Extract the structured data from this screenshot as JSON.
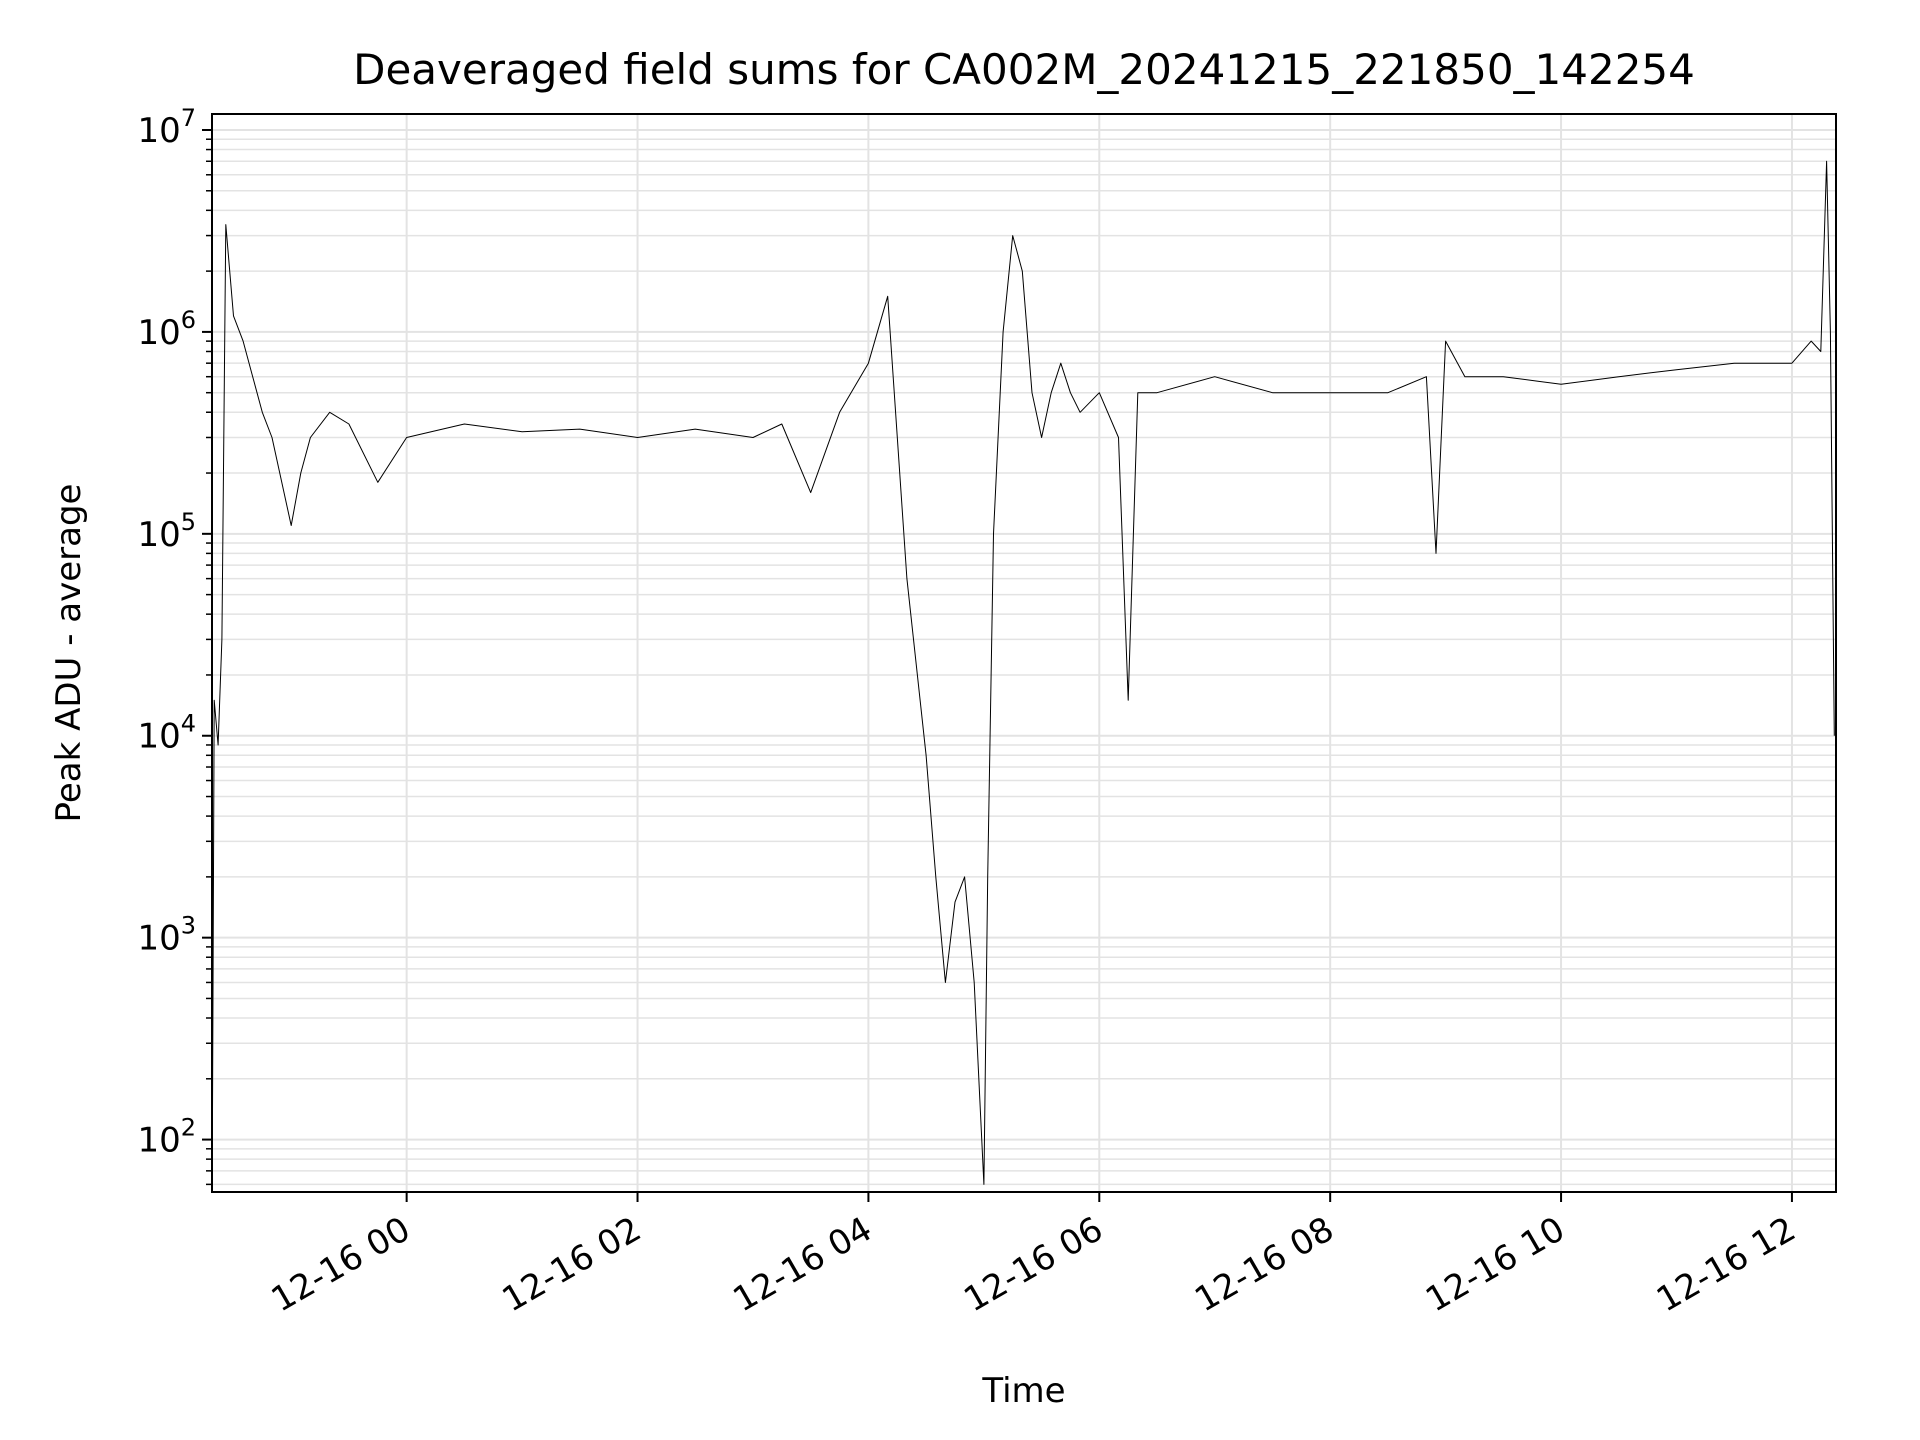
{
  "chart_data": {
    "type": "line",
    "title": "Deaveraged field sums for CA002M_20241215_221850_142254",
    "xlabel": "Time",
    "ylabel": "Peak ADU - average",
    "yscale": "log",
    "ylim": [
      55,
      12000000
    ],
    "xlim": [
      "2024-12-15 22:18:50",
      "2024-12-16 12:22:54"
    ],
    "grid": true,
    "line_color": "#000000",
    "grid_color": "#e3e3e3",
    "x_ticks": [
      {
        "value": "2024-12-16 00:00",
        "label": "12-16 00"
      },
      {
        "value": "2024-12-16 02:00",
        "label": "12-16 02"
      },
      {
        "value": "2024-12-16 04:00",
        "label": "12-16 04"
      },
      {
        "value": "2024-12-16 06:00",
        "label": "12-16 06"
      },
      {
        "value": "2024-12-16 08:00",
        "label": "12-16 08"
      },
      {
        "value": "2024-12-16 10:00",
        "label": "12-16 10"
      },
      {
        "value": "2024-12-16 12:00",
        "label": "12-16 12"
      }
    ],
    "y_ticks": [
      {
        "value": 100,
        "base": "10",
        "exp": "2"
      },
      {
        "value": 1000,
        "base": "10",
        "exp": "3"
      },
      {
        "value": 10000,
        "base": "10",
        "exp": "4"
      },
      {
        "value": 100000,
        "base": "10",
        "exp": "5"
      },
      {
        "value": 1000000,
        "base": "10",
        "exp": "6"
      },
      {
        "value": 10000000,
        "base": "10",
        "exp": "7"
      }
    ],
    "series": [
      {
        "x": [
          "2024-12-15 22:19",
          "2024-12-15 22:20",
          "2024-12-15 22:22",
          "2024-12-15 22:24",
          "2024-12-15 22:26",
          "2024-12-15 22:30",
          "2024-12-15 22:35",
          "2024-12-15 22:40",
          "2024-12-15 22:45",
          "2024-12-15 22:50",
          "2024-12-15 23:00",
          "2024-12-15 23:05",
          "2024-12-15 23:10",
          "2024-12-15 23:20",
          "2024-12-15 23:30",
          "2024-12-15 23:45",
          "2024-12-16 00:00",
          "2024-12-16 00:30",
          "2024-12-16 01:00",
          "2024-12-16 01:30",
          "2024-12-16 02:00",
          "2024-12-16 02:30",
          "2024-12-16 03:00",
          "2024-12-16 03:15",
          "2024-12-16 03:30",
          "2024-12-16 03:45",
          "2024-12-16 04:00",
          "2024-12-16 04:10",
          "2024-12-16 04:20",
          "2024-12-16 04:30",
          "2024-12-16 04:35",
          "2024-12-16 04:40",
          "2024-12-16 04:45",
          "2024-12-16 04:50",
          "2024-12-16 04:55",
          "2024-12-16 05:00",
          "2024-12-16 05:02",
          "2024-12-16 05:05",
          "2024-12-16 05:10",
          "2024-12-16 05:15",
          "2024-12-16 05:20",
          "2024-12-16 05:25",
          "2024-12-16 05:30",
          "2024-12-16 05:35",
          "2024-12-16 05:40",
          "2024-12-16 05:45",
          "2024-12-16 05:50",
          "2024-12-16 06:00",
          "2024-12-16 06:10",
          "2024-12-16 06:15",
          "2024-12-16 06:20",
          "2024-12-16 06:30",
          "2024-12-16 07:00",
          "2024-12-16 07:30",
          "2024-12-16 08:00",
          "2024-12-16 08:30",
          "2024-12-16 08:50",
          "2024-12-16 08:55",
          "2024-12-16 09:00",
          "2024-12-16 09:10",
          "2024-12-16 09:30",
          "2024-12-16 10:00",
          "2024-12-16 10:30",
          "2024-12-16 11:00",
          "2024-12-16 11:30",
          "2024-12-16 12:00",
          "2024-12-16 12:10",
          "2024-12-16 12:15",
          "2024-12-16 12:18",
          "2024-12-16 12:20",
          "2024-12-16 12:22"
        ],
        "y": [
          80,
          15000,
          9000,
          30000,
          3400000,
          1200000,
          900000,
          600000,
          400000,
          300000,
          110000,
          200000,
          300000,
          400000,
          350000,
          180000,
          300000,
          350000,
          320000,
          330000,
          300000,
          330000,
          300000,
          350000,
          160000,
          400000,
          700000,
          1500000,
          60000,
          8000,
          2000,
          600,
          1500,
          2000,
          600,
          60,
          2000,
          100000,
          1000000,
          3000000,
          2000000,
          500000,
          300000,
          500000,
          700000,
          500000,
          400000,
          500000,
          300000,
          15000,
          500000,
          500000,
          600000,
          500000,
          500000,
          500000,
          600000,
          80000,
          900000,
          600000,
          600000,
          550000,
          600000,
          650000,
          700000,
          700000,
          900000,
          800000,
          7000000,
          1000000,
          10000
        ]
      }
    ]
  }
}
